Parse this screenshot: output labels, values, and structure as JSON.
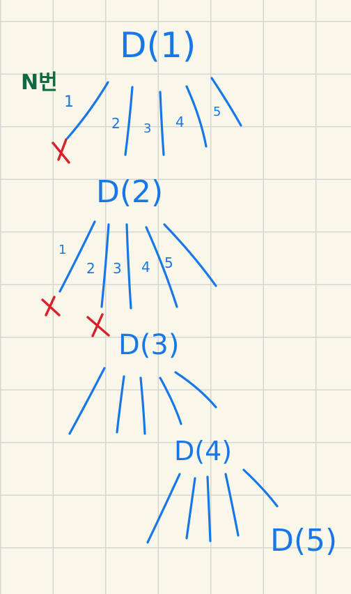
{
  "colors": {
    "ink": "#1877e6",
    "cross": "#d81f2a",
    "note": "#0f6b3f",
    "paper": "#f9f6ea",
    "grid": "#d6d6d1"
  },
  "note": {
    "text": "N번"
  },
  "nodes": [
    {
      "id": "n1",
      "label": "D(1)"
    },
    {
      "id": "n2",
      "label": "D(2)"
    },
    {
      "id": "n3",
      "label": "D(3)"
    },
    {
      "id": "n4",
      "label": "D(4)"
    },
    {
      "id": "n5",
      "label": "D(5)"
    }
  ],
  "branch_labels": {
    "level1": [
      "1",
      "2",
      "3",
      "4",
      "5"
    ],
    "level2": [
      "1",
      "2",
      "3",
      "4",
      "5"
    ]
  },
  "crosses": [
    {
      "id": "x1",
      "glyph": "×"
    },
    {
      "id": "x2",
      "glyph": "×"
    },
    {
      "id": "x3",
      "glyph": "×"
    }
  ]
}
